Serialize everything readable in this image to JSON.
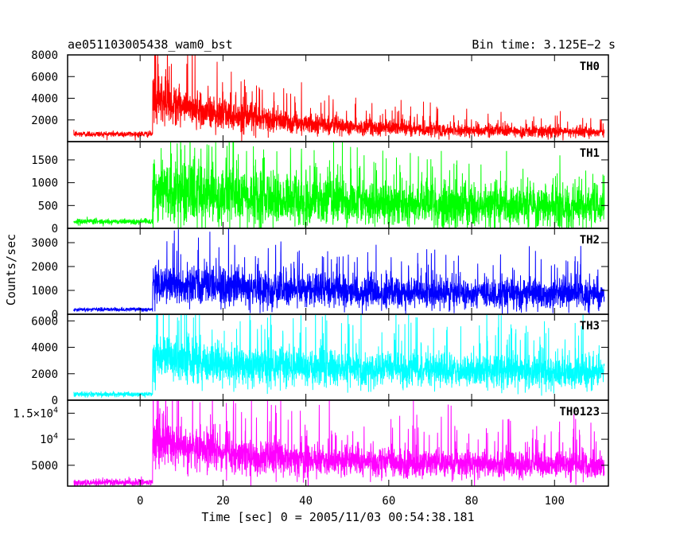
{
  "header": {
    "title": "ae051103005438_wam0_bst",
    "bin_time": "Bin time: 3.125E−2 s"
  },
  "chart_data": {
    "type": "line",
    "xlabel": "Time [sec] 0 = 2005/11/03 00:54:38.181",
    "ylabel": "Counts/sec",
    "xlim": [
      -17.5,
      113
    ],
    "x_ticks": [
      "0",
      "20",
      "40",
      "60",
      "80",
      "100"
    ],
    "x_tick_values": [
      0,
      20,
      40,
      60,
      80,
      100
    ],
    "x_start": -16,
    "x_end": 112,
    "trigger_time": 3,
    "panels": [
      {
        "name": "TH0",
        "color": "#ff0000",
        "ylim": [
          0,
          8000
        ],
        "yticks": [
          {
            "v": 2000,
            "label": "2000"
          },
          {
            "v": 4000,
            "label": "4000"
          },
          {
            "v": 6000,
            "label": "6000"
          },
          {
            "v": 8000,
            "label": "8000"
          }
        ],
        "pre_level": 700,
        "peak_level": 3800,
        "tail_level": 800,
        "decay_time": 30,
        "noise": 0.28
      },
      {
        "name": "TH1",
        "color": "#00ff00",
        "ylim": [
          0,
          1900
        ],
        "yticks": [
          {
            "v": 0,
            "label": "0"
          },
          {
            "v": 500,
            "label": "500"
          },
          {
            "v": 1000,
            "label": "1000"
          },
          {
            "v": 1500,
            "label": "1500"
          }
        ],
        "pre_level": 150,
        "peak_level": 850,
        "tail_level": 400,
        "decay_time": 50,
        "noise": 0.45
      },
      {
        "name": "TH2",
        "color": "#0000ff",
        "ylim": [
          0,
          3600
        ],
        "yticks": [
          {
            "v": 0,
            "label": "0"
          },
          {
            "v": 1000,
            "label": "1000"
          },
          {
            "v": 2000,
            "label": "2000"
          },
          {
            "v": 3000,
            "label": "3000"
          }
        ],
        "pre_level": 200,
        "peak_level": 1300,
        "tail_level": 800,
        "decay_time": 40,
        "noise": 0.35
      },
      {
        "name": "TH3",
        "color": "#00ffff",
        "ylim": [
          0,
          6500
        ],
        "yticks": [
          {
            "v": 0,
            "label": "0"
          },
          {
            "v": 2000,
            "label": "2000"
          },
          {
            "v": 4000,
            "label": "4000"
          },
          {
            "v": 6000,
            "label": "6000"
          }
        ],
        "pre_level": 450,
        "peak_level": 3200,
        "tail_level": 2100,
        "decay_time": 35,
        "noise": 0.28
      },
      {
        "name": "TH0123",
        "color": "#ff00ff",
        "ylim": [
          1000,
          17500
        ],
        "yticks": [
          {
            "v": 5000,
            "label": "5000",
            "sup": ""
          },
          {
            "v": 10000,
            "label": "10",
            "sup": "4"
          },
          {
            "v": 15000,
            "label": "1.5×10",
            "sup": "4"
          }
        ],
        "pre_level": 1700,
        "peak_level": 9500,
        "tail_level": 4800,
        "decay_time": 30,
        "noise": 0.26
      }
    ]
  }
}
